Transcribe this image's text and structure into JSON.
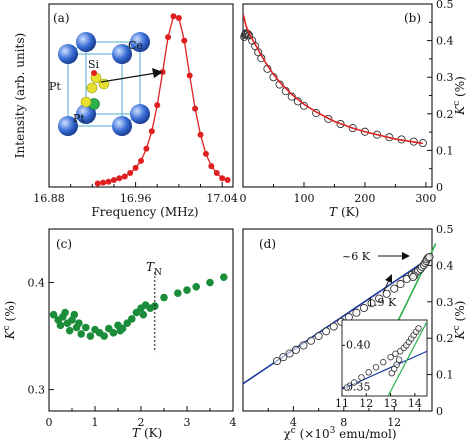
{
  "chart_data": [
    {
      "panel": "(a)",
      "type": "line",
      "xlabel": "Frequency (MHz)",
      "ylabel": "Intensity (arb. units)",
      "x_ticks": [
        "16.88",
        "16.96",
        "17.04"
      ],
      "xlim": [
        16.88,
        17.05
      ],
      "ylim": [
        0,
        1.05
      ],
      "series": [
        {
          "color": "#e02020",
          "points": [
            [
              16.925,
              0.02
            ],
            [
              16.93,
              0.025
            ],
            [
              16.935,
              0.03
            ],
            [
              16.94,
              0.04
            ],
            [
              16.945,
              0.05
            ],
            [
              16.95,
              0.06
            ],
            [
              16.955,
              0.08
            ],
            [
              16.96,
              0.11
            ],
            [
              16.965,
              0.15
            ],
            [
              16.97,
              0.22
            ],
            [
              16.975,
              0.32
            ],
            [
              16.98,
              0.47
            ],
            [
              16.985,
              0.66
            ],
            [
              16.99,
              0.86
            ],
            [
              16.995,
              0.98
            ],
            [
              17.0,
              0.97
            ],
            [
              17.005,
              0.84
            ],
            [
              17.01,
              0.64
            ],
            [
              17.015,
              0.45
            ],
            [
              17.02,
              0.3
            ],
            [
              17.025,
              0.19
            ],
            [
              17.03,
              0.12
            ],
            [
              17.035,
              0.08
            ],
            [
              17.04,
              0.05
            ],
            [
              17.045,
              0.04
            ]
          ]
        }
      ],
      "inset_labels": [
        "Ce",
        "Si",
        "Pt",
        "Pt"
      ]
    },
    {
      "panel": "(b)",
      "type": "scatter",
      "xlabel": "T (K)",
      "ylabel": "K^c (%)",
      "x_ticks": [
        "0",
        "100",
        "200",
        "300"
      ],
      "y_ticks": [
        "0",
        "0.1",
        "0.2",
        "0.3",
        "0.4",
        "0.5"
      ],
      "xlim": [
        0,
        310
      ],
      "ylim": [
        0,
        0.5
      ],
      "points": [
        [
          2,
          0.41
        ],
        [
          3,
          0.415
        ],
        [
          4,
          0.418
        ],
        [
          5,
          0.42
        ],
        [
          6,
          0.42
        ],
        [
          8,
          0.418
        ],
        [
          10,
          0.414
        ],
        [
          15,
          0.4
        ],
        [
          20,
          0.385
        ],
        [
          25,
          0.368
        ],
        [
          30,
          0.352
        ],
        [
          40,
          0.323
        ],
        [
          50,
          0.3
        ],
        [
          60,
          0.28
        ],
        [
          70,
          0.262
        ],
        [
          80,
          0.247
        ],
        [
          90,
          0.234
        ],
        [
          100,
          0.222
        ],
        [
          120,
          0.202
        ],
        [
          140,
          0.186
        ],
        [
          160,
          0.172
        ],
        [
          180,
          0.161
        ],
        [
          200,
          0.151
        ],
        [
          220,
          0.143
        ],
        [
          240,
          0.136
        ],
        [
          260,
          0.13
        ],
        [
          280,
          0.124
        ],
        [
          295,
          0.12
        ]
      ],
      "fit": [
        [
          0.5,
          0.47
        ],
        [
          5,
          0.44
        ],
        [
          10,
          0.42
        ],
        [
          20,
          0.39
        ],
        [
          30,
          0.36
        ],
        [
          40,
          0.332
        ],
        [
          50,
          0.308
        ],
        [
          60,
          0.287
        ],
        [
          80,
          0.253
        ],
        [
          100,
          0.226
        ],
        [
          120,
          0.205
        ],
        [
          150,
          0.179
        ],
        [
          180,
          0.161
        ],
        [
          200,
          0.151
        ],
        [
          250,
          0.131
        ],
        [
          295,
          0.119
        ]
      ],
      "fit_color": "#e02020"
    },
    {
      "panel": "(c)",
      "type": "scatter",
      "xlabel": "T (K)",
      "ylabel": "K^c (%)",
      "x_ticks": [
        "0",
        "1",
        "2",
        "3",
        "4"
      ],
      "y_ticks": [
        "0.3",
        "0.4"
      ],
      "xlim": [
        0,
        4
      ],
      "ylim": [
        0.28,
        0.45
      ],
      "annotation": "T_N",
      "annotation_x": 2.3,
      "color": "#1a8c3a",
      "points": [
        [
          0.1,
          0.37
        ],
        [
          0.2,
          0.365
        ],
        [
          0.25,
          0.36
        ],
        [
          0.3,
          0.368
        ],
        [
          0.35,
          0.372
        ],
        [
          0.4,
          0.362
        ],
        [
          0.45,
          0.355
        ],
        [
          0.5,
          0.365
        ],
        [
          0.55,
          0.37
        ],
        [
          0.6,
          0.358
        ],
        [
          0.65,
          0.362
        ],
        [
          0.7,
          0.352
        ],
        [
          0.8,
          0.358
        ],
        [
          0.9,
          0.35
        ],
        [
          1.0,
          0.356
        ],
        [
          1.1,
          0.353
        ],
        [
          1.2,
          0.35
        ],
        [
          1.3,
          0.357
        ],
        [
          1.4,
          0.353
        ],
        [
          1.5,
          0.36
        ],
        [
          1.55,
          0.355
        ],
        [
          1.6,
          0.357
        ],
        [
          1.7,
          0.362
        ],
        [
          1.8,
          0.366
        ],
        [
          1.9,
          0.372
        ],
        [
          2.0,
          0.376
        ],
        [
          2.05,
          0.37
        ],
        [
          2.1,
          0.379
        ],
        [
          2.2,
          0.376
        ],
        [
          2.3,
          0.378
        ],
        [
          2.5,
          0.386
        ],
        [
          2.8,
          0.39
        ],
        [
          3.0,
          0.393
        ],
        [
          3.2,
          0.396
        ],
        [
          3.5,
          0.4
        ],
        [
          3.8,
          0.405
        ]
      ]
    },
    {
      "panel": "(d)",
      "type": "scatter",
      "xlabel": "χ^c (×10^3 emu/mol)",
      "ylabel": "K^c (%)",
      "x_ticks": [
        "4",
        "8",
        "12"
      ],
      "y_ticks": [
        "0",
        "0.1",
        "0.2",
        "0.3",
        "0.4",
        "0.5"
      ],
      "xlim": [
        0,
        15
      ],
      "ylim": [
        0,
        0.5
      ],
      "annotations": [
        "~6 K",
        "1.9 K"
      ],
      "points": [
        [
          2.7,
          0.137
        ],
        [
          3.2,
          0.148
        ],
        [
          3.7,
          0.158
        ],
        [
          4.2,
          0.168
        ],
        [
          4.8,
          0.18
        ],
        [
          5.4,
          0.193
        ],
        [
          6.0,
          0.206
        ],
        [
          6.6,
          0.219
        ],
        [
          7.2,
          0.232
        ],
        [
          7.8,
          0.245
        ],
        [
          8.4,
          0.258
        ],
        [
          9.0,
          0.27
        ],
        [
          9.6,
          0.283
        ],
        [
          10.2,
          0.296
        ],
        [
          10.8,
          0.309
        ],
        [
          11.4,
          0.322
        ],
        [
          12.0,
          0.336
        ],
        [
          12.5,
          0.349
        ],
        [
          13.0,
          0.363
        ],
        [
          13.4,
          0.374
        ],
        [
          13.7,
          0.38
        ],
        [
          13.9,
          0.385
        ],
        [
          14.1,
          0.39
        ],
        [
          14.2,
          0.396
        ],
        [
          14.35,
          0.401
        ],
        [
          14.45,
          0.407
        ],
        [
          14.55,
          0.412
        ],
        [
          14.6,
          0.417
        ],
        [
          14.7,
          0.421
        ],
        [
          14.8,
          0.423
        ],
        [
          13.6,
          0.372
        ],
        [
          13.5,
          0.368
        ]
      ],
      "fit_blue": [
        [
          0,
          0.075
        ],
        [
          15,
          0.425
        ]
      ],
      "fit_green": [
        [
          12.2,
          0.24
        ],
        [
          15.3,
          0.46
        ]
      ],
      "inset": {
        "x_ticks": [
          "11",
          "12",
          "13",
          "14"
        ],
        "y_ticks": [
          "0.35",
          "0.40"
        ],
        "xlim": [
          11,
          14.5
        ],
        "ylim": [
          0.34,
          0.43
        ],
        "points": [
          [
            11.2,
            0.35
          ],
          [
            11.5,
            0.356
          ],
          [
            11.8,
            0.362
          ],
          [
            12.1,
            0.368
          ],
          [
            12.4,
            0.374
          ],
          [
            12.7,
            0.38
          ],
          [
            13.0,
            0.386
          ],
          [
            13.2,
            0.39
          ],
          [
            13.4,
            0.393
          ],
          [
            13.55,
            0.397
          ],
          [
            13.65,
            0.4
          ],
          [
            13.75,
            0.404
          ],
          [
            13.85,
            0.408
          ],
          [
            13.95,
            0.412
          ],
          [
            14.05,
            0.416
          ],
          [
            14.15,
            0.42
          ],
          [
            13.35,
            0.383
          ],
          [
            13.25,
            0.377
          ],
          [
            13.15,
            0.372
          ],
          [
            13.05,
            0.367
          ]
        ]
      }
    }
  ],
  "colors": {
    "red": "#e02020",
    "green": "#1a8c3a",
    "blue": "#1a3aa0",
    "lightgreen": "#2bb24c"
  }
}
